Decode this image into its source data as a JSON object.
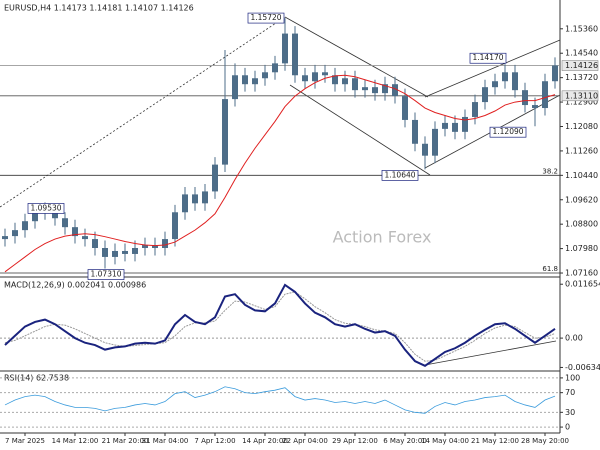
{
  "chart_data": [
    {
      "type": "candlestick",
      "title": "EURUSD,H4 1.14173 1.14181 1.14107 1.14126",
      "watermark": "Action Forex",
      "categories": [
        null,
        null,
        "7 Mar 2025",
        null,
        null,
        null,
        null,
        "14 Mar 12:00",
        null,
        null,
        null,
        null,
        "21 Mar 20:00",
        null,
        null,
        null,
        "31 Mar 04:00",
        null,
        null,
        null,
        null,
        "7 Apr 12:00",
        null,
        null,
        null,
        null,
        "14 Apr 20:00",
        null,
        null,
        null,
        "22 Apr 04:00",
        null,
        null,
        null,
        null,
        "29 Apr 12:00",
        null,
        null,
        null,
        null,
        "6 May 20:00",
        null,
        null,
        null,
        "14 May 04:00",
        null,
        null,
        null,
        null,
        "21 May 12:00",
        null,
        null,
        null,
        null,
        "28 May 20:00",
        null
      ],
      "open": [
        1.083,
        1.084,
        1.086,
        1.089,
        1.092,
        1.093,
        1.09,
        1.087,
        1.084,
        1.083,
        1.08,
        1.077,
        1.079,
        1.078,
        1.08,
        1.081,
        1.08,
        1.083,
        1.092,
        1.098,
        1.095,
        1.099,
        1.108,
        1.13,
        1.138,
        1.135,
        1.137,
        1.139,
        1.142,
        1.152,
        1.138,
        1.136,
        1.139,
        1.138,
        1.135,
        1.137,
        1.133,
        1.134,
        1.132,
        1.135,
        1.131,
        1.123,
        1.115,
        1.111,
        1.12,
        1.122,
        1.119,
        1.124,
        1.129,
        1.134,
        1.136,
        1.139,
        1.133,
        1.128,
        1.127,
        1.136
      ],
      "high": [
        1.0865,
        1.0885,
        1.0915,
        1.0945,
        1.0953,
        1.095,
        1.092,
        1.0895,
        1.0865,
        1.0855,
        1.0825,
        1.0815,
        1.0815,
        1.0825,
        1.0835,
        1.0835,
        1.0855,
        1.0945,
        1.1005,
        1.1005,
        1.1015,
        1.1105,
        1.1465,
        1.142,
        1.1405,
        1.1395,
        1.1415,
        1.1445,
        1.1572,
        1.1545,
        1.1405,
        1.1415,
        1.1415,
        1.1405,
        1.1395,
        1.1395,
        1.1365,
        1.1365,
        1.1375,
        1.1375,
        1.1335,
        1.1255,
        1.1175,
        1.1225,
        1.1245,
        1.1245,
        1.1265,
        1.1315,
        1.1365,
        1.1385,
        1.1417,
        1.1415,
        1.1355,
        1.1305,
        1.1385,
        1.144
      ],
      "low": [
        1.0805,
        1.0815,
        1.0835,
        1.0865,
        1.0895,
        1.0875,
        1.0845,
        1.0815,
        1.0805,
        1.0775,
        1.0731,
        1.0745,
        1.0755,
        1.0755,
        1.0775,
        1.0775,
        1.0775,
        1.0805,
        1.0895,
        1.0925,
        1.0925,
        1.0965,
        1.1055,
        1.1275,
        1.1325,
        1.1325,
        1.1345,
        1.1365,
        1.1395,
        1.1355,
        1.1335,
        1.1335,
        1.1355,
        1.1325,
        1.1325,
        1.1305,
        1.1305,
        1.1295,
        1.1295,
        1.1285,
        1.1205,
        1.1125,
        1.1064,
        1.1085,
        1.1175,
        1.1165,
        1.1165,
        1.1215,
        1.1265,
        1.1315,
        1.1335,
        1.1305,
        1.1255,
        1.1209,
        1.1245,
        1.1335
      ],
      "close": [
        1.084,
        1.086,
        1.089,
        1.092,
        1.093,
        1.09,
        1.087,
        1.084,
        1.083,
        1.08,
        1.077,
        1.079,
        1.078,
        1.08,
        1.081,
        1.08,
        1.083,
        1.092,
        1.098,
        1.095,
        1.099,
        1.108,
        1.13,
        1.138,
        1.135,
        1.137,
        1.139,
        1.142,
        1.152,
        1.138,
        1.136,
        1.139,
        1.138,
        1.135,
        1.137,
        1.133,
        1.134,
        1.132,
        1.135,
        1.131,
        1.123,
        1.115,
        1.111,
        1.12,
        1.122,
        1.119,
        1.124,
        1.129,
        1.134,
        1.136,
        1.139,
        1.133,
        1.128,
        1.127,
        1.136,
        1.1413
      ],
      "color": "#4d6d88",
      "overlay_values": [
        1.072,
        1.0745,
        1.077,
        1.0795,
        1.0815,
        1.083,
        1.084,
        1.0845,
        1.0848,
        1.0845,
        1.0838,
        1.083,
        1.0822,
        1.0815,
        1.081,
        1.0808,
        1.081,
        1.082,
        1.084,
        1.086,
        1.0885,
        1.0915,
        1.097,
        1.103,
        1.1085,
        1.1135,
        1.118,
        1.1225,
        1.1275,
        1.131,
        1.1335,
        1.1355,
        1.137,
        1.1378,
        1.138,
        1.1375,
        1.1365,
        1.1355,
        1.1345,
        1.1335,
        1.1318,
        1.1295,
        1.127,
        1.1255,
        1.1245,
        1.1235,
        1.123,
        1.1235,
        1.1245,
        1.126,
        1.128,
        1.129,
        1.1295,
        1.1295,
        1.1305,
        1.1315
      ],
      "overlay_color": "#e02020",
      "ylim": [
        1.0706,
        1.1626
      ],
      "yticks": [
        {
          "value": 1.1536,
          "label": "1.15360"
        },
        {
          "value": 1.1454,
          "label": "1.14540"
        },
        {
          "value": 1.1372,
          "label": "1.13720"
        },
        {
          "value": 1.129,
          "label": "1.12900"
        },
        {
          "value": 1.1208,
          "label": "1.12080"
        },
        {
          "value": 1.1126,
          "label": "1.11260"
        },
        {
          "value": 1.1044,
          "label": "1.10440"
        },
        {
          "value": 1.0962,
          "label": "1.09620"
        },
        {
          "value": 1.088,
          "label": "1.08800"
        },
        {
          "value": 1.0798,
          "label": "1.07980"
        },
        {
          "value": 1.0716,
          "label": "1.07160"
        }
      ],
      "levels": [
        {
          "value": 1.14126,
          "label": "1.14126"
        },
        {
          "value": 1.1311,
          "label": "1.13110"
        }
      ],
      "fib_levels": [
        {
          "value": 1.1044,
          "label": "38.2"
        },
        {
          "value": 1.0716,
          "label": "61.8"
        }
      ],
      "annotations": [
        {
          "value": 1.1572,
          "label": "1.15720"
        },
        {
          "value": 1.0953,
          "label": "1.09530"
        },
        {
          "value": 1.0731,
          "label": "1.07310"
        },
        {
          "value": 1.1064,
          "label": "1.10640"
        },
        {
          "value": 1.1417,
          "label": "1.14170"
        },
        {
          "value": 1.1209,
          "label": "1.12090"
        }
      ]
    },
    {
      "type": "line",
      "title": "MACD(12,26,9) 0.002041 0.000986",
      "values": [
        -0.0015,
        0.0005,
        0.0025,
        0.0035,
        0.004,
        0.003,
        0.0015,
        0.0,
        -0.001,
        -0.0015,
        -0.0025,
        -0.002,
        -0.0018,
        -0.0012,
        -0.001,
        -0.0012,
        -0.0005,
        0.003,
        0.005,
        0.0035,
        0.003,
        0.0045,
        0.009,
        0.0095,
        0.0072,
        0.006,
        0.0058,
        0.0075,
        0.0115,
        0.01,
        0.0075,
        0.0055,
        0.0045,
        0.003,
        0.0025,
        0.003,
        0.002,
        0.0012,
        0.0015,
        0.0005,
        -0.0025,
        -0.005,
        -0.006,
        -0.0045,
        -0.003,
        -0.0022,
        -0.001,
        0.0005,
        0.0018,
        0.003,
        0.0032,
        0.002,
        0.0005,
        -0.001,
        0.0005,
        0.002
      ],
      "color": "#1a237e",
      "signal_values": [
        -0.001,
        -0.0005,
        0.0005,
        0.0015,
        0.0025,
        0.003,
        0.0028,
        0.002,
        0.001,
        0.0,
        -0.001,
        -0.0015,
        -0.0018,
        -0.0016,
        -0.0014,
        -0.0012,
        -0.001,
        0.0005,
        0.0025,
        0.0033,
        0.0033,
        0.0037,
        0.006,
        0.008,
        0.0078,
        0.007,
        0.0062,
        0.0068,
        0.0095,
        0.01,
        0.0085,
        0.0068,
        0.0055,
        0.004,
        0.0032,
        0.003,
        0.0025,
        0.0018,
        0.0015,
        0.001,
        -0.001,
        -0.0035,
        -0.005,
        -0.0048,
        -0.0038,
        -0.0028,
        -0.0018,
        -0.0005,
        0.001,
        0.0022,
        0.0028,
        0.0025,
        0.0012,
        0.0,
        0.0002,
        0.001
      ],
      "signal_color": "#999999",
      "ylim": [
        -0.0069,
        0.013
      ],
      "yticks": [
        0.011654,
        {
          "value": 0,
          "label": "0.00"
        },
        -0.006345
      ]
    },
    {
      "type": "line",
      "title": "RSI(14) 62.7538",
      "values": [
        45,
        55,
        62,
        65,
        62,
        52,
        45,
        40,
        40,
        38,
        33,
        38,
        40,
        45,
        48,
        45,
        52,
        68,
        72,
        60,
        65,
        72,
        82,
        78,
        70,
        68,
        72,
        75,
        80,
        62,
        55,
        58,
        55,
        50,
        52,
        48,
        52,
        48,
        55,
        45,
        35,
        30,
        28,
        42,
        50,
        45,
        52,
        55,
        60,
        62,
        65,
        52,
        45,
        40,
        55,
        63
      ],
      "color": "#3a9bdc",
      "ylim": [
        -10,
        112
      ],
      "yticks": [
        100,
        70,
        30,
        0
      ],
      "grid": true
    }
  ]
}
